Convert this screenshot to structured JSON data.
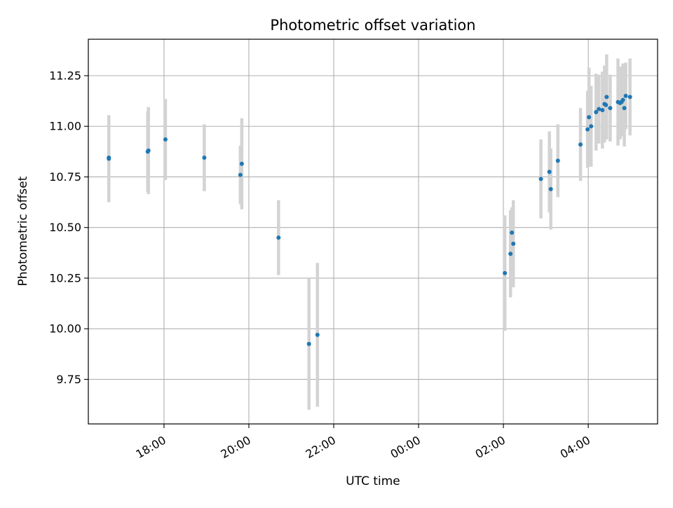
{
  "chart_data": {
    "type": "scatter",
    "title": "Photometric offset variation",
    "xlabel": "UTC time",
    "ylabel": "Photometric offset",
    "x_axis_type": "time",
    "x_reference_day": "day 1",
    "xlim": [
      "day 1 16:13",
      "day 2 05:38"
    ],
    "ylim": [
      9.53,
      11.43
    ],
    "x_ticks": [
      {
        "time": "day 1 18:00",
        "label": "18:00"
      },
      {
        "time": "day 1 20:00",
        "label": "20:00"
      },
      {
        "time": "day 1 22:00",
        "label": "22:00"
      },
      {
        "time": "day 2 00:00",
        "label": "00:00"
      },
      {
        "time": "day 2 02:00",
        "label": "02:00"
      },
      {
        "time": "day 2 04:00",
        "label": "04:00"
      }
    ],
    "y_ticks": [
      {
        "value": 9.75,
        "label": "9.75"
      },
      {
        "value": 10.0,
        "label": "10.00"
      },
      {
        "value": 10.25,
        "label": "10.25"
      },
      {
        "value": 10.5,
        "label": "10.50"
      },
      {
        "value": 10.75,
        "label": "10.75"
      },
      {
        "value": 11.0,
        "label": "11.00"
      },
      {
        "value": 11.25,
        "label": "11.25"
      }
    ],
    "grid": true,
    "legend": "none",
    "colors": {
      "points": "#1f77b4",
      "error_bars": "#d3d3d3",
      "grid": "#b0b0b0"
    },
    "series": [
      {
        "points": [
          {
            "x": "day 1 16:42",
            "y": 10.84,
            "err": 0.215
          },
          {
            "x": "day 1 16:42",
            "y": 10.845,
            "err": 0.205
          },
          {
            "x": "day 1 17:37",
            "y": 10.875,
            "err": 0.2
          },
          {
            "x": "day 1 17:38",
            "y": 10.88,
            "err": 0.215
          },
          {
            "x": "day 1 18:02",
            "y": 10.935,
            "err": 0.2
          },
          {
            "x": "day 1 18:57",
            "y": 10.845,
            "err": 0.165
          },
          {
            "x": "day 1 19:48",
            "y": 10.76,
            "err": 0.145
          },
          {
            "x": "day 1 19:50",
            "y": 10.815,
            "err": 0.225
          },
          {
            "x": "day 1 20:42",
            "y": 10.45,
            "err": 0.185
          },
          {
            "x": "day 1 21:25",
            "y": 9.925,
            "err": 0.325
          },
          {
            "x": "day 1 21:37",
            "y": 9.97,
            "err": 0.355
          },
          {
            "x": "day 2 02:02",
            "y": 10.275,
            "err": 0.285
          },
          {
            "x": "day 2 02:10",
            "y": 10.37,
            "err": 0.215
          },
          {
            "x": "day 2 02:12",
            "y": 10.475,
            "err": 0.125
          },
          {
            "x": "day 2 02:14",
            "y": 10.42,
            "err": 0.215
          },
          {
            "x": "day 2 02:53",
            "y": 10.74,
            "err": 0.195
          },
          {
            "x": "day 2 03:05",
            "y": 10.775,
            "err": 0.2
          },
          {
            "x": "day 2 03:07",
            "y": 10.69,
            "err": 0.2
          },
          {
            "x": "day 2 03:17",
            "y": 10.83,
            "err": 0.18
          },
          {
            "x": "day 2 03:49",
            "y": 10.91,
            "err": 0.18
          },
          {
            "x": "day 2 03:59",
            "y": 10.985,
            "err": 0.19
          },
          {
            "x": "day 2 04:01",
            "y": 11.045,
            "err": 0.245
          },
          {
            "x": "day 2 04:04",
            "y": 11.0,
            "err": 0.2
          },
          {
            "x": "day 2 04:11",
            "y": 11.07,
            "err": 0.19
          },
          {
            "x": "day 2 04:15",
            "y": 11.085,
            "err": 0.17
          },
          {
            "x": "day 2 04:20",
            "y": 11.08,
            "err": 0.19
          },
          {
            "x": "day 2 04:23",
            "y": 11.11,
            "err": 0.19
          },
          {
            "x": "day 2 04:25",
            "y": 11.105,
            "err": 0.17
          },
          {
            "x": "day 2 04:26",
            "y": 11.145,
            "err": 0.21
          },
          {
            "x": "day 2 04:31",
            "y": 11.09,
            "err": 0.165
          },
          {
            "x": "day 2 04:42",
            "y": 11.12,
            "err": 0.215
          },
          {
            "x": "day 2 04:45",
            "y": 11.115,
            "err": 0.18
          },
          {
            "x": "day 2 04:47",
            "y": 11.12,
            "err": 0.16
          },
          {
            "x": "day 2 04:49",
            "y": 11.13,
            "err": 0.18
          },
          {
            "x": "day 2 04:51",
            "y": 11.09,
            "err": 0.19
          },
          {
            "x": "day 2 04:53",
            "y": 11.15,
            "err": 0.165
          },
          {
            "x": "day 2 04:59",
            "y": 11.145,
            "err": 0.19
          }
        ]
      }
    ]
  }
}
